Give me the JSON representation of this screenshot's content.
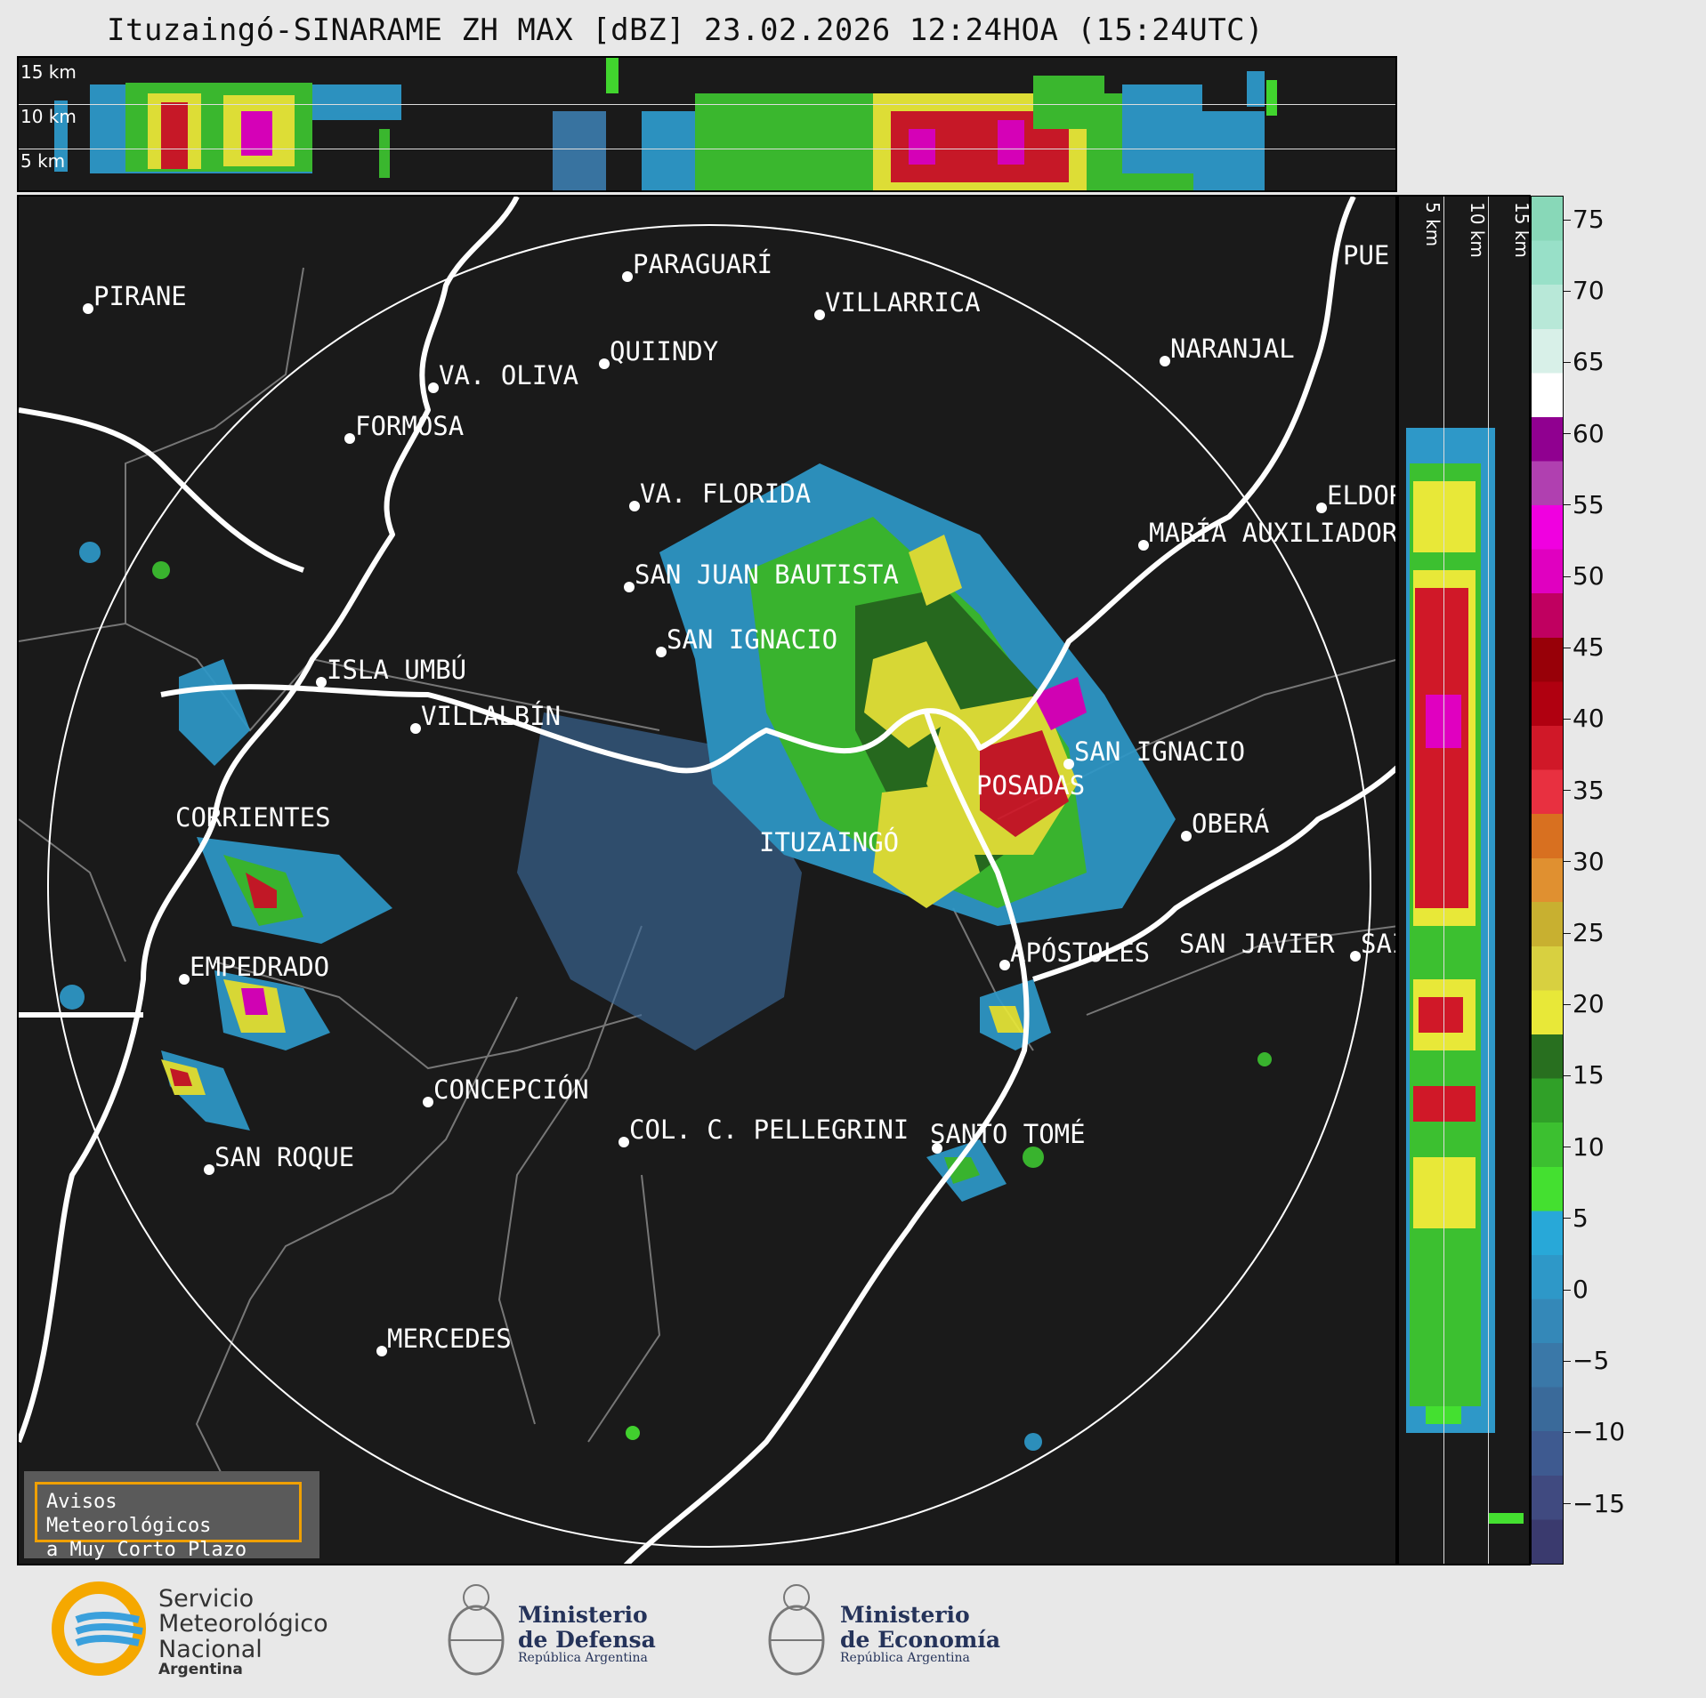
{
  "title": "Ituzaingó-SINARAME ZH MAX [dBZ] 23.02.2026 12:24HOA (15:24UTC)",
  "top_panel": {
    "labels": [
      "15 km",
      "10 km",
      "5 km"
    ]
  },
  "side_panel": {
    "labels": [
      "5 km",
      "10 km",
      "15 km"
    ]
  },
  "colorbar": {
    "ticks": [
      "75",
      "70",
      "65",
      "60",
      "55",
      "50",
      "45",
      "40",
      "35",
      "30",
      "25",
      "20",
      "15",
      "10",
      "5",
      "0",
      "−5",
      "−10",
      "−15"
    ],
    "colors": [
      "#3a3a6e",
      "#404a80",
      "#3e5a90",
      "#3a6a9a",
      "#3a78a8",
      "#3488b8",
      "#2e98c8",
      "#28a8d8",
      "#44e030",
      "#3cc030",
      "#30a028",
      "#286f1f",
      "#e8e838",
      "#d8d040",
      "#c8b030",
      "#e09030",
      "#d87020",
      "#e83040",
      "#d01828",
      "#b00010",
      "#980008",
      "#c00060",
      "#e000c0",
      "#f000e0",
      "#b040b0",
      "#900090",
      "#ffffff",
      "#d8f0e8",
      "#b8e8d8",
      "#98e0c8",
      "#88d8b8"
    ],
    "color_names": [
      "dark-navy",
      "slate",
      "steel",
      "blue",
      "light-blue",
      "cyan",
      "green",
      "dark-green",
      "yellow",
      "olive",
      "gold",
      "orange",
      "red",
      "dark-red",
      "crimson",
      "magenta",
      "purple",
      "white",
      "mint"
    ]
  },
  "cities": [
    "PIRANE",
    "PARAGUARÍ",
    "VILLARRICA",
    "QUIINDY",
    "VA. OLIVA",
    "NARANJAL",
    "FORMOSA",
    "VA. FLORIDA",
    "ELDOR",
    "MARÍA AUXILIADOR",
    "SAN JUAN BAUTISTA",
    "SAN IGNACIO",
    "ISLA UMBÚ",
    "VILLALBÍN",
    "SAN IGNACIO",
    "POSADAS",
    "CORRIENTES",
    "OBERÁ",
    "ITUZAINGÓ",
    "APÓSTOLES",
    "SAN JAVIER",
    "SAI",
    "EMPEDRADO",
    "CONCEPCIÓN",
    "COL. C. PELLEGRINI",
    "SANTO TOMÉ",
    "SAN ROQUE",
    "MERCEDES",
    "PUE"
  ],
  "aviso": {
    "line1": "Avisos Meteorológicos",
    "line2": "a Muy Corto Plazo"
  },
  "footer": {
    "smn": [
      "Servicio",
      "Meteorológico",
      "Nacional",
      "Argentina"
    ],
    "defensa": [
      "Ministerio",
      "de Defensa",
      "República Argentina"
    ],
    "economia": [
      "Ministerio",
      "de Economía",
      "República Argentina"
    ]
  }
}
